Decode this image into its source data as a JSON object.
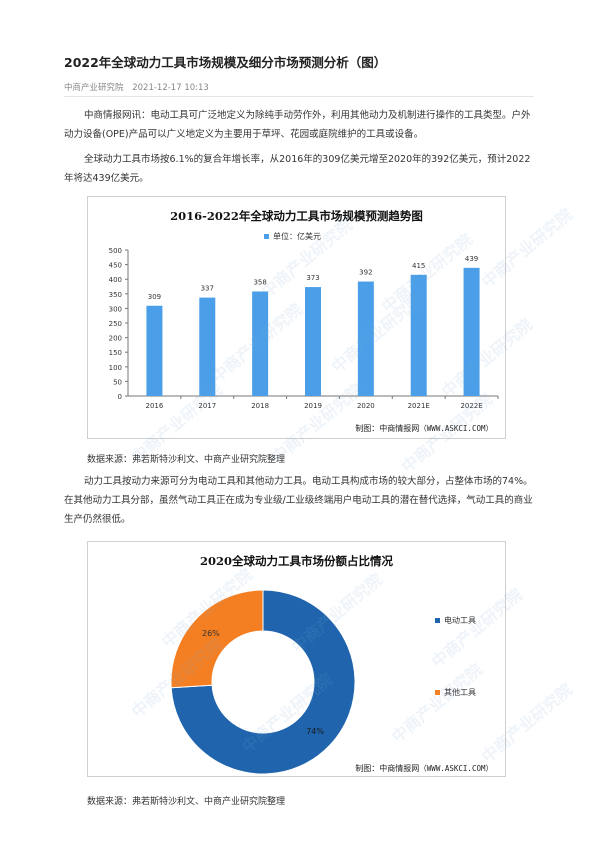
{
  "article": {
    "title": "2022年全球动力工具市场规模及细分市场预测分析（图）",
    "source_name": "中商产业研究院",
    "datetime": "2021-12-17 10:13",
    "paragraph_1": "中商情报网讯：电动工具可广泛地定义为除纯手动劳作外，利用其他动力及机制进行操作的工具类型。户外动力设备(OPE)产品可以广义地定义为主要用于草坪、花园或庭院维护的工具或设备。",
    "paragraph_2": "全球动力工具市场按6.1%的复合年增长率，从2016年的309亿美元增至2020年的392亿美元，预计2022年将达439亿美元。",
    "paragraph_3": "动力工具按动力来源可分为电动工具和其他动力工具。电动工具构成市场的较大部分，占整体市场的74%。在其他动力工具分部，虽然气动工具正在成为专业级/工业级终端用户电动工具的潜在替代选择，气动工具的商业生产仍然很低。",
    "data_source_1": "数据来源：弗若斯特沙利文、中商产业研究院整理",
    "data_source_2": "数据来源：弗若斯特沙利文、中商产业研究院整理"
  },
  "figure_credit": {
    "prefix": "制图：中商情报网",
    "url": "（WWW.ASKCI.COM）"
  },
  "watermark": "中商产业研究院",
  "colors": {
    "bar": "#4a9fe8",
    "pie_electric": "#1f64ad",
    "pie_other": "#f47f23",
    "link_blue": "#2a6ebb"
  },
  "chart_data": [
    {
      "type": "bar",
      "title": "2016-2022年全球动力工具市场规模预测趋势图",
      "legend": "单位：亿美元",
      "categories": [
        "2016",
        "2017",
        "2018",
        "2019",
        "2020",
        "2021E",
        "2022E"
      ],
      "values": [
        309,
        337,
        358,
        373,
        392,
        415,
        439
      ],
      "data_labels": [
        "309",
        "337",
        "358",
        "373",
        "392",
        "415",
        "439"
      ],
      "yticks": [
        "0",
        "50",
        "100",
        "150",
        "200",
        "250",
        "300",
        "350",
        "400",
        "450",
        "500"
      ],
      "ylim": [
        0,
        500
      ],
      "grid": false,
      "legend_position": "top-center"
    },
    {
      "type": "pie",
      "title": "2020全球动力工具市场份额占比情况",
      "donut": true,
      "slices": [
        {
          "name": "电动工具",
          "value": 74,
          "label": "74%"
        },
        {
          "name": "其他工具",
          "value": 26,
          "label": "26%"
        }
      ],
      "legend_position": "right"
    }
  ]
}
